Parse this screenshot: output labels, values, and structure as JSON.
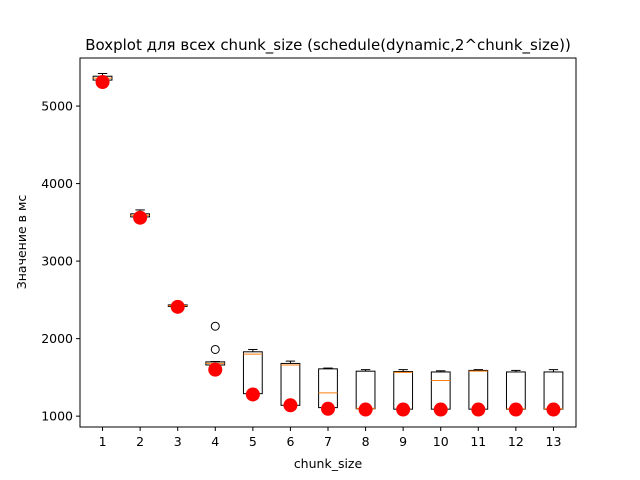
{
  "chart_data": {
    "type": "boxplot",
    "title": "Boxplot для всех chunk_size (schedule(dynamic,2^chunk_size))",
    "xlabel": "chunk_size",
    "ylabel": "Значение в мс",
    "categories": [
      "1",
      "2",
      "3",
      "4",
      "5",
      "6",
      "7",
      "8",
      "9",
      "10",
      "11",
      "12",
      "13"
    ],
    "xlim": [
      0.4,
      13.6
    ],
    "ylim": [
      860,
      5620
    ],
    "yticks": [
      1000,
      2000,
      3000,
      4000,
      5000
    ],
    "grid": false,
    "colors": {
      "box": "#000000",
      "median": "#ff7f0e",
      "marker": "#ff0000",
      "flier": "#000000"
    },
    "boxes": [
      {
        "category": "1",
        "whislo": 5330,
        "q1": 5335,
        "median": 5360,
        "q3": 5385,
        "whishi": 5420,
        "fliers": []
      },
      {
        "category": "2",
        "whislo": 3550,
        "q1": 3570,
        "median": 3590,
        "q3": 3610,
        "whishi": 3660,
        "fliers": []
      },
      {
        "category": "3",
        "whislo": 2400,
        "q1": 2415,
        "median": 2425,
        "q3": 2435,
        "whishi": 2460,
        "fliers": []
      },
      {
        "category": "4",
        "whislo": 1600,
        "q1": 1660,
        "median": 1680,
        "q3": 1700,
        "whishi": 1705,
        "fliers": [
          2160,
          1860,
          1600
        ]
      },
      {
        "category": "5",
        "whislo": 1290,
        "q1": 1290,
        "median": 1800,
        "q3": 1830,
        "whishi": 1860,
        "fliers": []
      },
      {
        "category": "6",
        "whislo": 1140,
        "q1": 1140,
        "median": 1660,
        "q3": 1680,
        "whishi": 1710,
        "fliers": []
      },
      {
        "category": "7",
        "whislo": 1100,
        "q1": 1110,
        "median": 1300,
        "q3": 1610,
        "whishi": 1620,
        "fliers": []
      },
      {
        "category": "8",
        "whislo": 1090,
        "q1": 1095,
        "median": 1100,
        "q3": 1580,
        "whishi": 1600,
        "fliers": []
      },
      {
        "category": "9",
        "whislo": 1090,
        "q1": 1090,
        "median": 1565,
        "q3": 1575,
        "whishi": 1600,
        "fliers": []
      },
      {
        "category": "10",
        "whislo": 1085,
        "q1": 1090,
        "median": 1460,
        "q3": 1570,
        "whishi": 1585,
        "fliers": []
      },
      {
        "category": "11",
        "whislo": 1085,
        "q1": 1090,
        "median": 1580,
        "q3": 1590,
        "whishi": 1600,
        "fliers": []
      },
      {
        "category": "12",
        "whislo": 1085,
        "q1": 1090,
        "median": 1095,
        "q3": 1570,
        "whishi": 1590,
        "fliers": []
      },
      {
        "category": "13",
        "whislo": 1085,
        "q1": 1090,
        "median": 1095,
        "q3": 1570,
        "whishi": 1600,
        "fliers": []
      }
    ],
    "markers": [
      5310,
      3560,
      2410,
      1600,
      1280,
      1140,
      1095,
      1085,
      1085,
      1085,
      1085,
      1085,
      1085
    ]
  }
}
